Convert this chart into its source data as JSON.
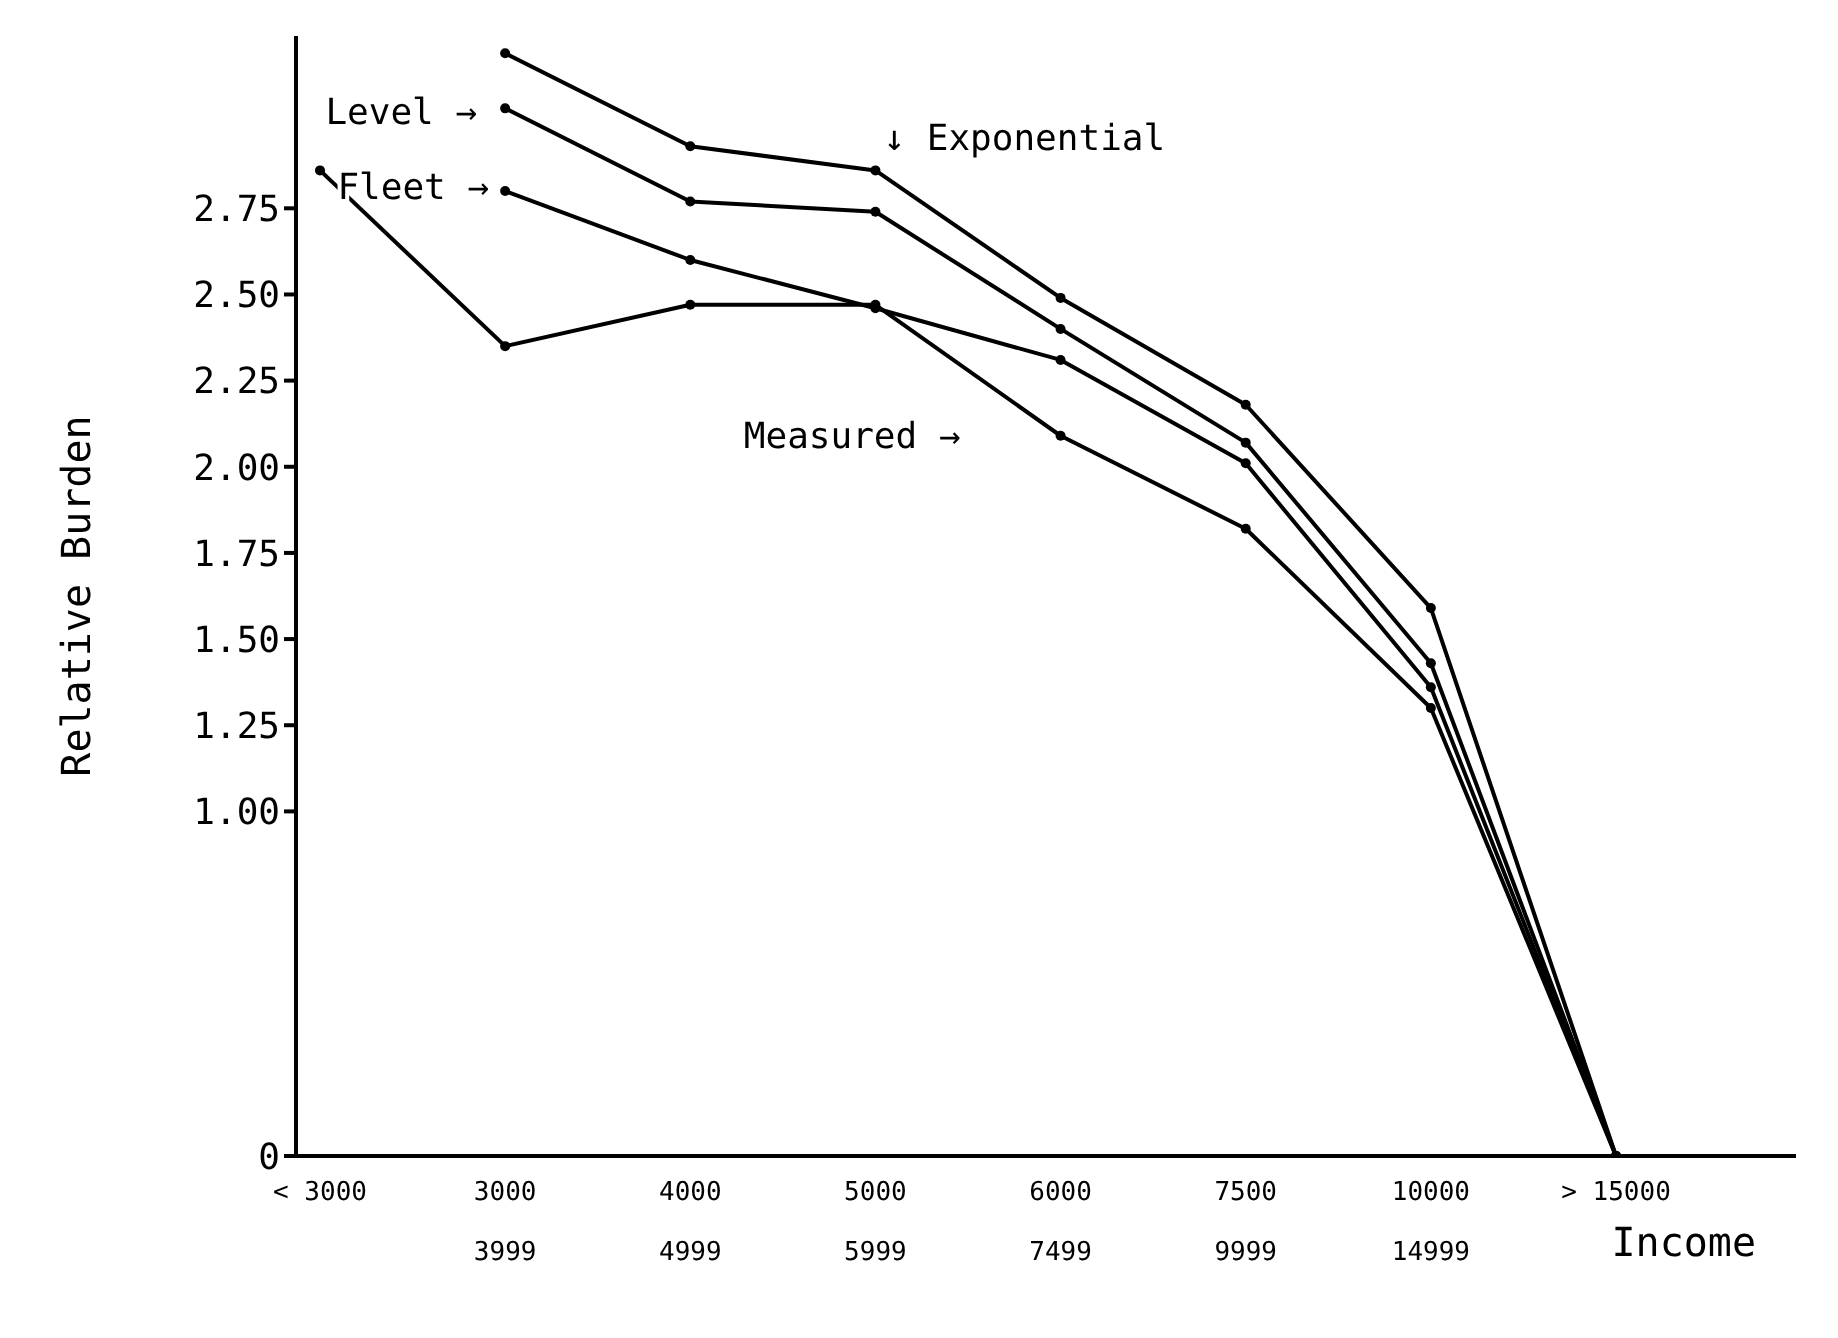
{
  "chart_data": {
    "type": "line",
    "xlabel": "Income",
    "ylabel": "Relative Burden",
    "categories": [
      "< 3000",
      "3000\n3999",
      "4000\n4999",
      "5000\n5999",
      "6000\n7499",
      "7500\n9999",
      "10000\n14999",
      "> 15000"
    ],
    "series": [
      {
        "name": "Level →",
        "color": "#000000",
        "values": [
          null,
          3.04,
          2.77,
          2.74,
          2.4,
          2.07,
          1.43,
          0
        ]
      },
      {
        "name": "↓ Exponential",
        "color": "#000000",
        "values": [
          null,
          3.2,
          2.93,
          2.86,
          2.49,
          2.18,
          1.59,
          0
        ]
      },
      {
        "name": "Fleet →",
        "color": "#000000",
        "values": [
          null,
          2.8,
          2.6,
          2.46,
          2.31,
          2.01,
          1.36,
          0
        ]
      },
      {
        "name": "Measured →",
        "color": "#000000",
        "values": [
          2.86,
          2.35,
          2.47,
          2.47,
          2.09,
          1.82,
          1.3,
          0
        ]
      }
    ],
    "ylim": [
      0,
      3.25
    ],
    "yticks": [
      0,
      {
        "value": 1,
        "label": "1.00"
      },
      1.25,
      {
        "value": 1.5,
        "label": "1.50"
      },
      1.75,
      {
        "value": 2,
        "label": "2.00"
      },
      2.25,
      {
        "value": 2.5,
        "label": "2.50"
      },
      2.75
    ],
    "grid": false,
    "legend": false,
    "marker": "circle",
    "line_style": "solid"
  }
}
